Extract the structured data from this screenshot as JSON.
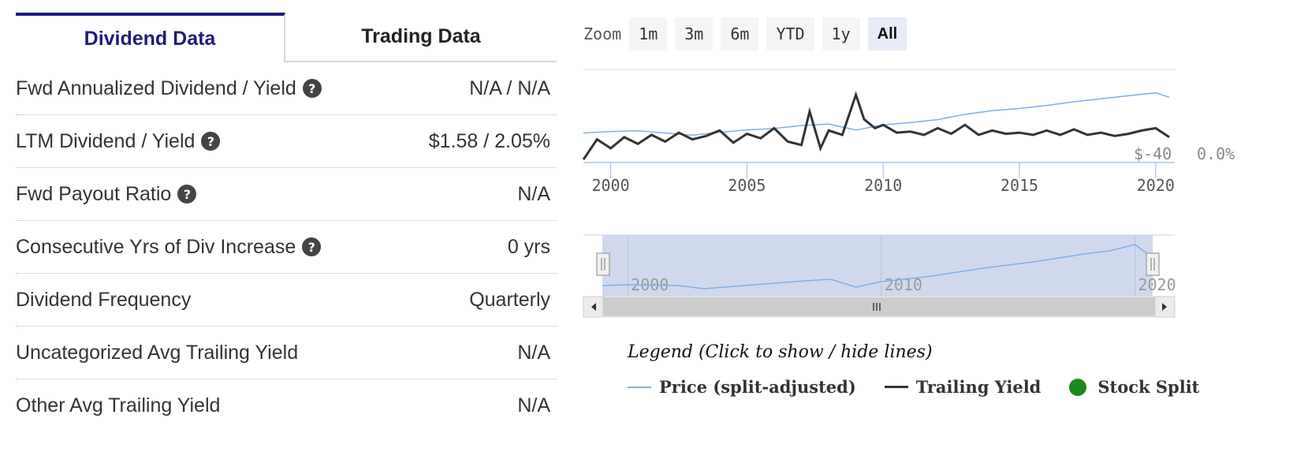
{
  "tabs": [
    {
      "label": "Dividend Data",
      "active": true
    },
    {
      "label": "Trading Data",
      "active": false
    }
  ],
  "rows": [
    {
      "label": "Fwd Annualized Dividend / Yield",
      "help": true,
      "value": "N/A / N/A"
    },
    {
      "label": "LTM Dividend / Yield",
      "help": true,
      "value": "$1.58 / 2.05%"
    },
    {
      "label": "Fwd Payout Ratio",
      "help": true,
      "value": "N/A"
    },
    {
      "label": "Consecutive Yrs of Div Increase",
      "help": true,
      "value": "0 yrs"
    },
    {
      "label": "Dividend Frequency",
      "help": false,
      "value": "Quarterly"
    },
    {
      "label": "Uncategorized Avg Trailing Yield",
      "help": false,
      "value": "N/A"
    },
    {
      "label": "Other Avg Trailing Yield",
      "help": false,
      "value": "N/A"
    }
  ],
  "help_icon": "?",
  "zoom": {
    "label": "Zoom",
    "options": [
      "1m",
      "3m",
      "6m",
      "YTD",
      "1y",
      "All"
    ],
    "selected": "All"
  },
  "colors": {
    "price": "#7fb0e8",
    "yield": "#333333",
    "split": "#1a8a1a",
    "navigator_fill": "#d0d9ee",
    "scrollbar": "#cccccc",
    "tab_active": "#1f1c7a"
  },
  "chart_data": {
    "type": "line",
    "x_ticks": [
      "2000",
      "2005",
      "2010",
      "2015",
      "2020"
    ],
    "y_labels": {
      "price": "$-40",
      "yield": "0.0%"
    },
    "navigator_ticks": [
      "2000",
      "2010",
      "2020"
    ],
    "series": [
      {
        "name": "Price (split-adjusted)",
        "x": [
          1999,
          2000,
          2001,
          2002,
          2003,
          2004,
          2005,
          2006,
          2007,
          2008,
          2009,
          2010,
          2011,
          2012,
          2013,
          2014,
          2015,
          2016,
          2017,
          2018,
          2019,
          2020,
          2020.5
        ],
        "y": [
          30,
          32,
          33,
          30,
          27,
          31,
          34,
          36,
          40,
          42,
          34,
          41,
          44,
          48,
          55,
          60,
          63,
          67,
          72,
          76,
          80,
          84,
          78
        ]
      },
      {
        "name": "Trailing Yield",
        "x": [
          1999,
          1999.5,
          2000,
          2000.5,
          2001,
          2001.5,
          2002,
          2002.5,
          2003,
          2003.5,
          2004,
          2004.5,
          2005,
          2005.5,
          2006,
          2006.5,
          2007,
          2007.3,
          2007.7,
          2008,
          2008.5,
          2009,
          2009.3,
          2009.7,
          2010,
          2010.5,
          2011,
          2011.5,
          2012,
          2012.5,
          2013,
          2013.5,
          2014,
          2014.5,
          2015,
          2015.5,
          2016,
          2016.5,
          2017,
          2017.5,
          2018,
          2018.5,
          2019,
          2019.5,
          2020,
          2020.5
        ],
        "y": [
          0.2,
          2.0,
          1.2,
          2.2,
          1.6,
          2.4,
          1.8,
          2.6,
          2.0,
          2.3,
          2.8,
          1.7,
          2.5,
          2.1,
          3.0,
          1.8,
          1.5,
          4.5,
          1.2,
          2.8,
          2.4,
          6.0,
          3.8,
          3.0,
          3.3,
          2.6,
          2.7,
          2.4,
          3.0,
          2.5,
          3.3,
          2.4,
          2.8,
          2.5,
          2.6,
          2.4,
          2.8,
          2.4,
          2.9,
          2.4,
          2.6,
          2.3,
          2.5,
          2.8,
          3.0,
          2.2
        ]
      },
      {
        "name": "Stock Split",
        "x": [],
        "y": []
      }
    ],
    "navigator": {
      "x": [
        1999,
        2000,
        2002,
        2003,
        2005,
        2007,
        2008,
        2009,
        2010,
        2012,
        2014,
        2016,
        2018,
        2019,
        2020,
        2020.5
      ],
      "y": [
        30,
        31,
        30,
        26,
        31,
        36,
        38,
        28,
        35,
        42,
        52,
        60,
        70,
        74,
        82,
        70
      ]
    }
  },
  "legend": {
    "title": "Legend (Click to show / hide lines)",
    "items": [
      {
        "label": "Price (split-adjusted)",
        "kind": "line",
        "color": "#7fb0e8"
      },
      {
        "label": "Trailing Yield",
        "kind": "line",
        "color": "#333333"
      },
      {
        "label": "Stock Split",
        "kind": "dot",
        "color": "#1a8a1a"
      }
    ]
  },
  "scroll_icons": {
    "left": "left-arrow-icon",
    "right": "right-arrow-icon",
    "grip": "grip-icon"
  }
}
